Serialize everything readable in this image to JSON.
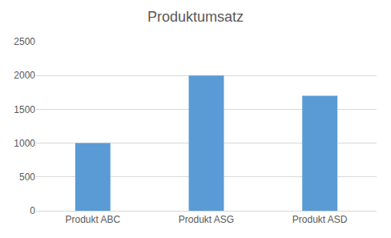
{
  "chart_data": {
    "type": "bar",
    "title": "Produktumsatz",
    "categories": [
      "Produkt ABC",
      "Produkt ASG",
      "Produkt ASD"
    ],
    "values": [
      1000,
      2000,
      1700
    ],
    "color": "#5b9bd5",
    "ylim": [
      0,
      2500
    ],
    "yticks": [
      0,
      500,
      1000,
      1500,
      2000,
      2500
    ],
    "grid": true
  }
}
